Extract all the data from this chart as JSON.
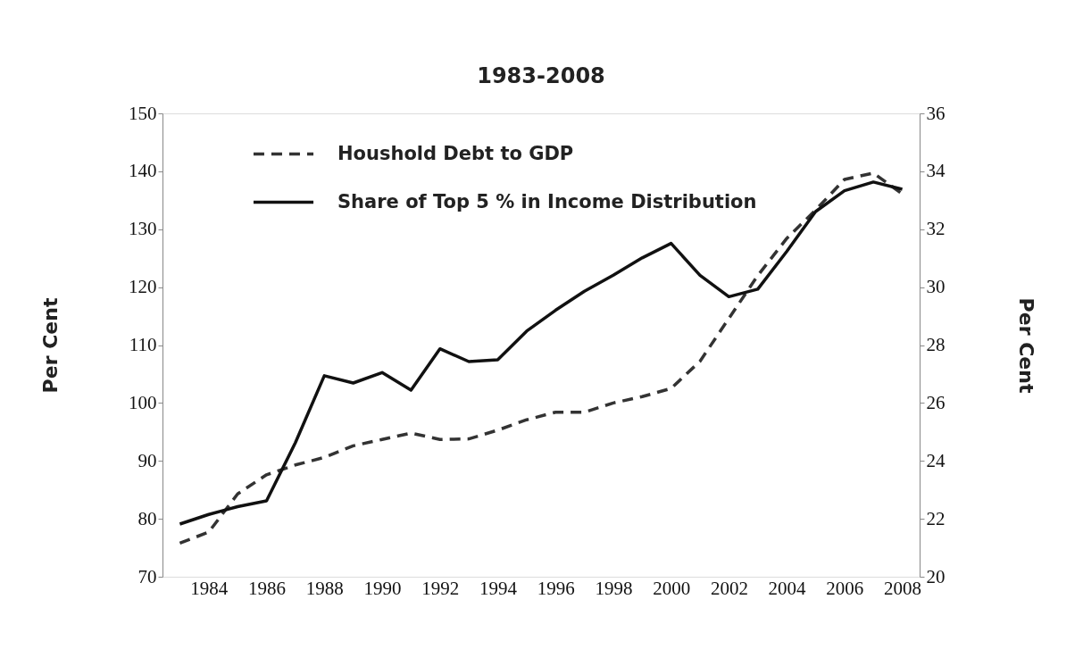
{
  "chart_data": {
    "type": "line",
    "title": "1983-2008",
    "ylabel": "Per Cent",
    "y2label": "Per Cent",
    "x": [
      1983,
      1984,
      1985,
      1986,
      1987,
      1988,
      1989,
      1990,
      1991,
      1992,
      1993,
      1994,
      1995,
      1996,
      1997,
      1998,
      1999,
      2000,
      2001,
      2002,
      2003,
      2004,
      2005,
      2006,
      2007,
      2008
    ],
    "series": [
      {
        "name": "Houshold Debt to GDP",
        "color": "#333333",
        "line_style": "dashed",
        "axis": "y",
        "values": [
          75.8,
          77.7,
          84.3,
          87.6,
          89.3,
          90.6,
          92.6,
          93.7,
          94.8,
          93.7,
          93.8,
          95.3,
          97.1,
          98.4,
          98.4,
          100.0,
          101.1,
          102.5,
          107.2,
          114.6,
          122.0,
          128.4,
          133.3,
          138.6,
          139.7,
          136.1
        ]
      },
      {
        "name": "Share of Top 5 % in Income Distribution",
        "color": "#111111",
        "line_style": "solid",
        "axis": "y2",
        "values": [
          21.82,
          22.15,
          22.42,
          22.62,
          24.63,
          26.94,
          26.69,
          27.05,
          26.44,
          27.87,
          27.43,
          27.49,
          28.48,
          29.2,
          29.86,
          30.41,
          31.01,
          31.51,
          30.41,
          29.67,
          29.93,
          31.23,
          32.61,
          33.33,
          33.63,
          33.38
        ]
      }
    ],
    "xlim": [
      1982.4,
      2008.6
    ],
    "xticks": [
      1984,
      1986,
      1988,
      1990,
      1992,
      1994,
      1996,
      1998,
      2000,
      2002,
      2004,
      2006,
      2008
    ],
    "ylim": [
      70,
      150
    ],
    "yticks": [
      70,
      80,
      90,
      100,
      110,
      120,
      130,
      140,
      150
    ],
    "y2lim": [
      20,
      36
    ],
    "y2ticks": [
      20,
      22,
      24,
      26,
      28,
      30,
      32,
      34,
      36
    ],
    "grid": false,
    "legend": "top left",
    "marker": "none"
  }
}
